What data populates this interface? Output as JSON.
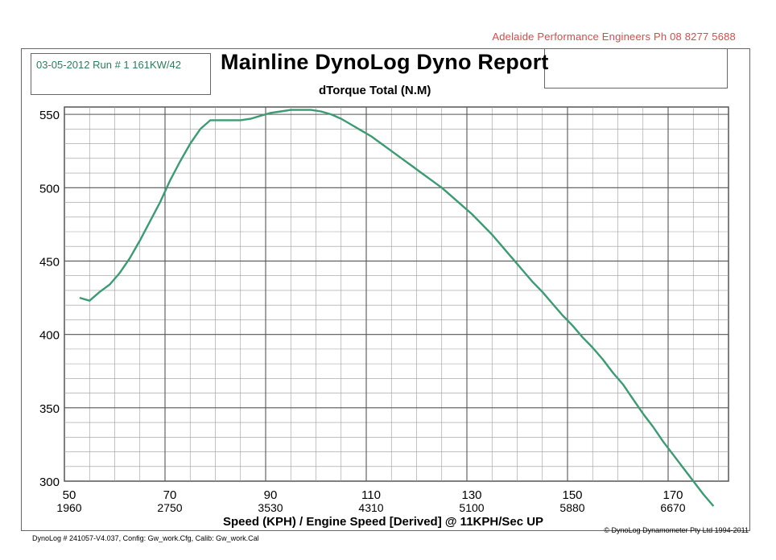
{
  "header": {
    "company": "Adelaide Performance Engineers  Ph 08 8277 5688",
    "run_info": "03-05-2012 Run # 1 161KW/42",
    "title": "Mainline DynoLog Dyno Report"
  },
  "footer": {
    "config": "DynoLog # 241057-V4.037, Config: Gw_work.Cfg, Calib: Gw_work.Cal",
    "copyright": "© DynoLog Dynamometer Pty Ltd 1994-2011"
  },
  "colors": {
    "curve": "#3b9b72",
    "grid_major": "#555555",
    "grid_minor": "#9a9a9a",
    "company_text": "#d94a4a",
    "run_text": "#2e7d5b"
  },
  "chart_data": {
    "type": "line",
    "title": "dTorque Total (N.M)",
    "xlabel": "Speed (KPH) / Engine Speed [Derived] @ 11KPH/Sec UP",
    "ylabel": "",
    "xlim": [
      50,
      182
    ],
    "ylim": [
      300,
      555
    ],
    "x_ticks": [
      50,
      70,
      90,
      110,
      130,
      150,
      170
    ],
    "x_tick_labels": [
      "50",
      "70",
      "90",
      "110",
      "130",
      "150",
      "170"
    ],
    "x_tick_rpm": [
      "1960",
      "2750",
      "3530",
      "4310",
      "5100",
      "5880",
      "6670"
    ],
    "y_ticks": [
      300,
      350,
      400,
      450,
      500,
      550
    ],
    "y_tick_labels": [
      "300",
      "350",
      "400",
      "450",
      "500",
      "550"
    ],
    "grid": true,
    "series": [
      {
        "x": [
          53,
          55,
          57,
          59,
          61,
          63,
          65,
          67,
          69,
          71,
          73,
          75,
          77,
          79,
          81,
          83,
          85,
          87,
          89,
          91,
          93,
          95,
          97,
          99,
          101,
          103,
          105,
          107,
          109,
          111,
          113,
          115,
          117,
          119,
          121,
          123,
          125,
          127,
          129,
          131,
          133,
          135,
          137,
          139,
          141,
          143,
          145,
          147,
          149,
          151,
          153,
          155,
          157,
          159,
          161,
          163,
          165,
          167,
          169,
          171,
          173,
          175,
          177,
          179
        ],
        "y": [
          425,
          423,
          429,
          434,
          442,
          452,
          464,
          477,
          490,
          505,
          518,
          530,
          540,
          546,
          546,
          546,
          546,
          547,
          549,
          551,
          552,
          553,
          553,
          553,
          552,
          550,
          547,
          543,
          539,
          535,
          530,
          525,
          520,
          515,
          510,
          505,
          500,
          494,
          488,
          482,
          475,
          468,
          460,
          452,
          444,
          436,
          429,
          421,
          413,
          406,
          398,
          391,
          383,
          374,
          366,
          356,
          346,
          337,
          327,
          318,
          309,
          300,
          291,
          283
        ]
      }
    ]
  }
}
